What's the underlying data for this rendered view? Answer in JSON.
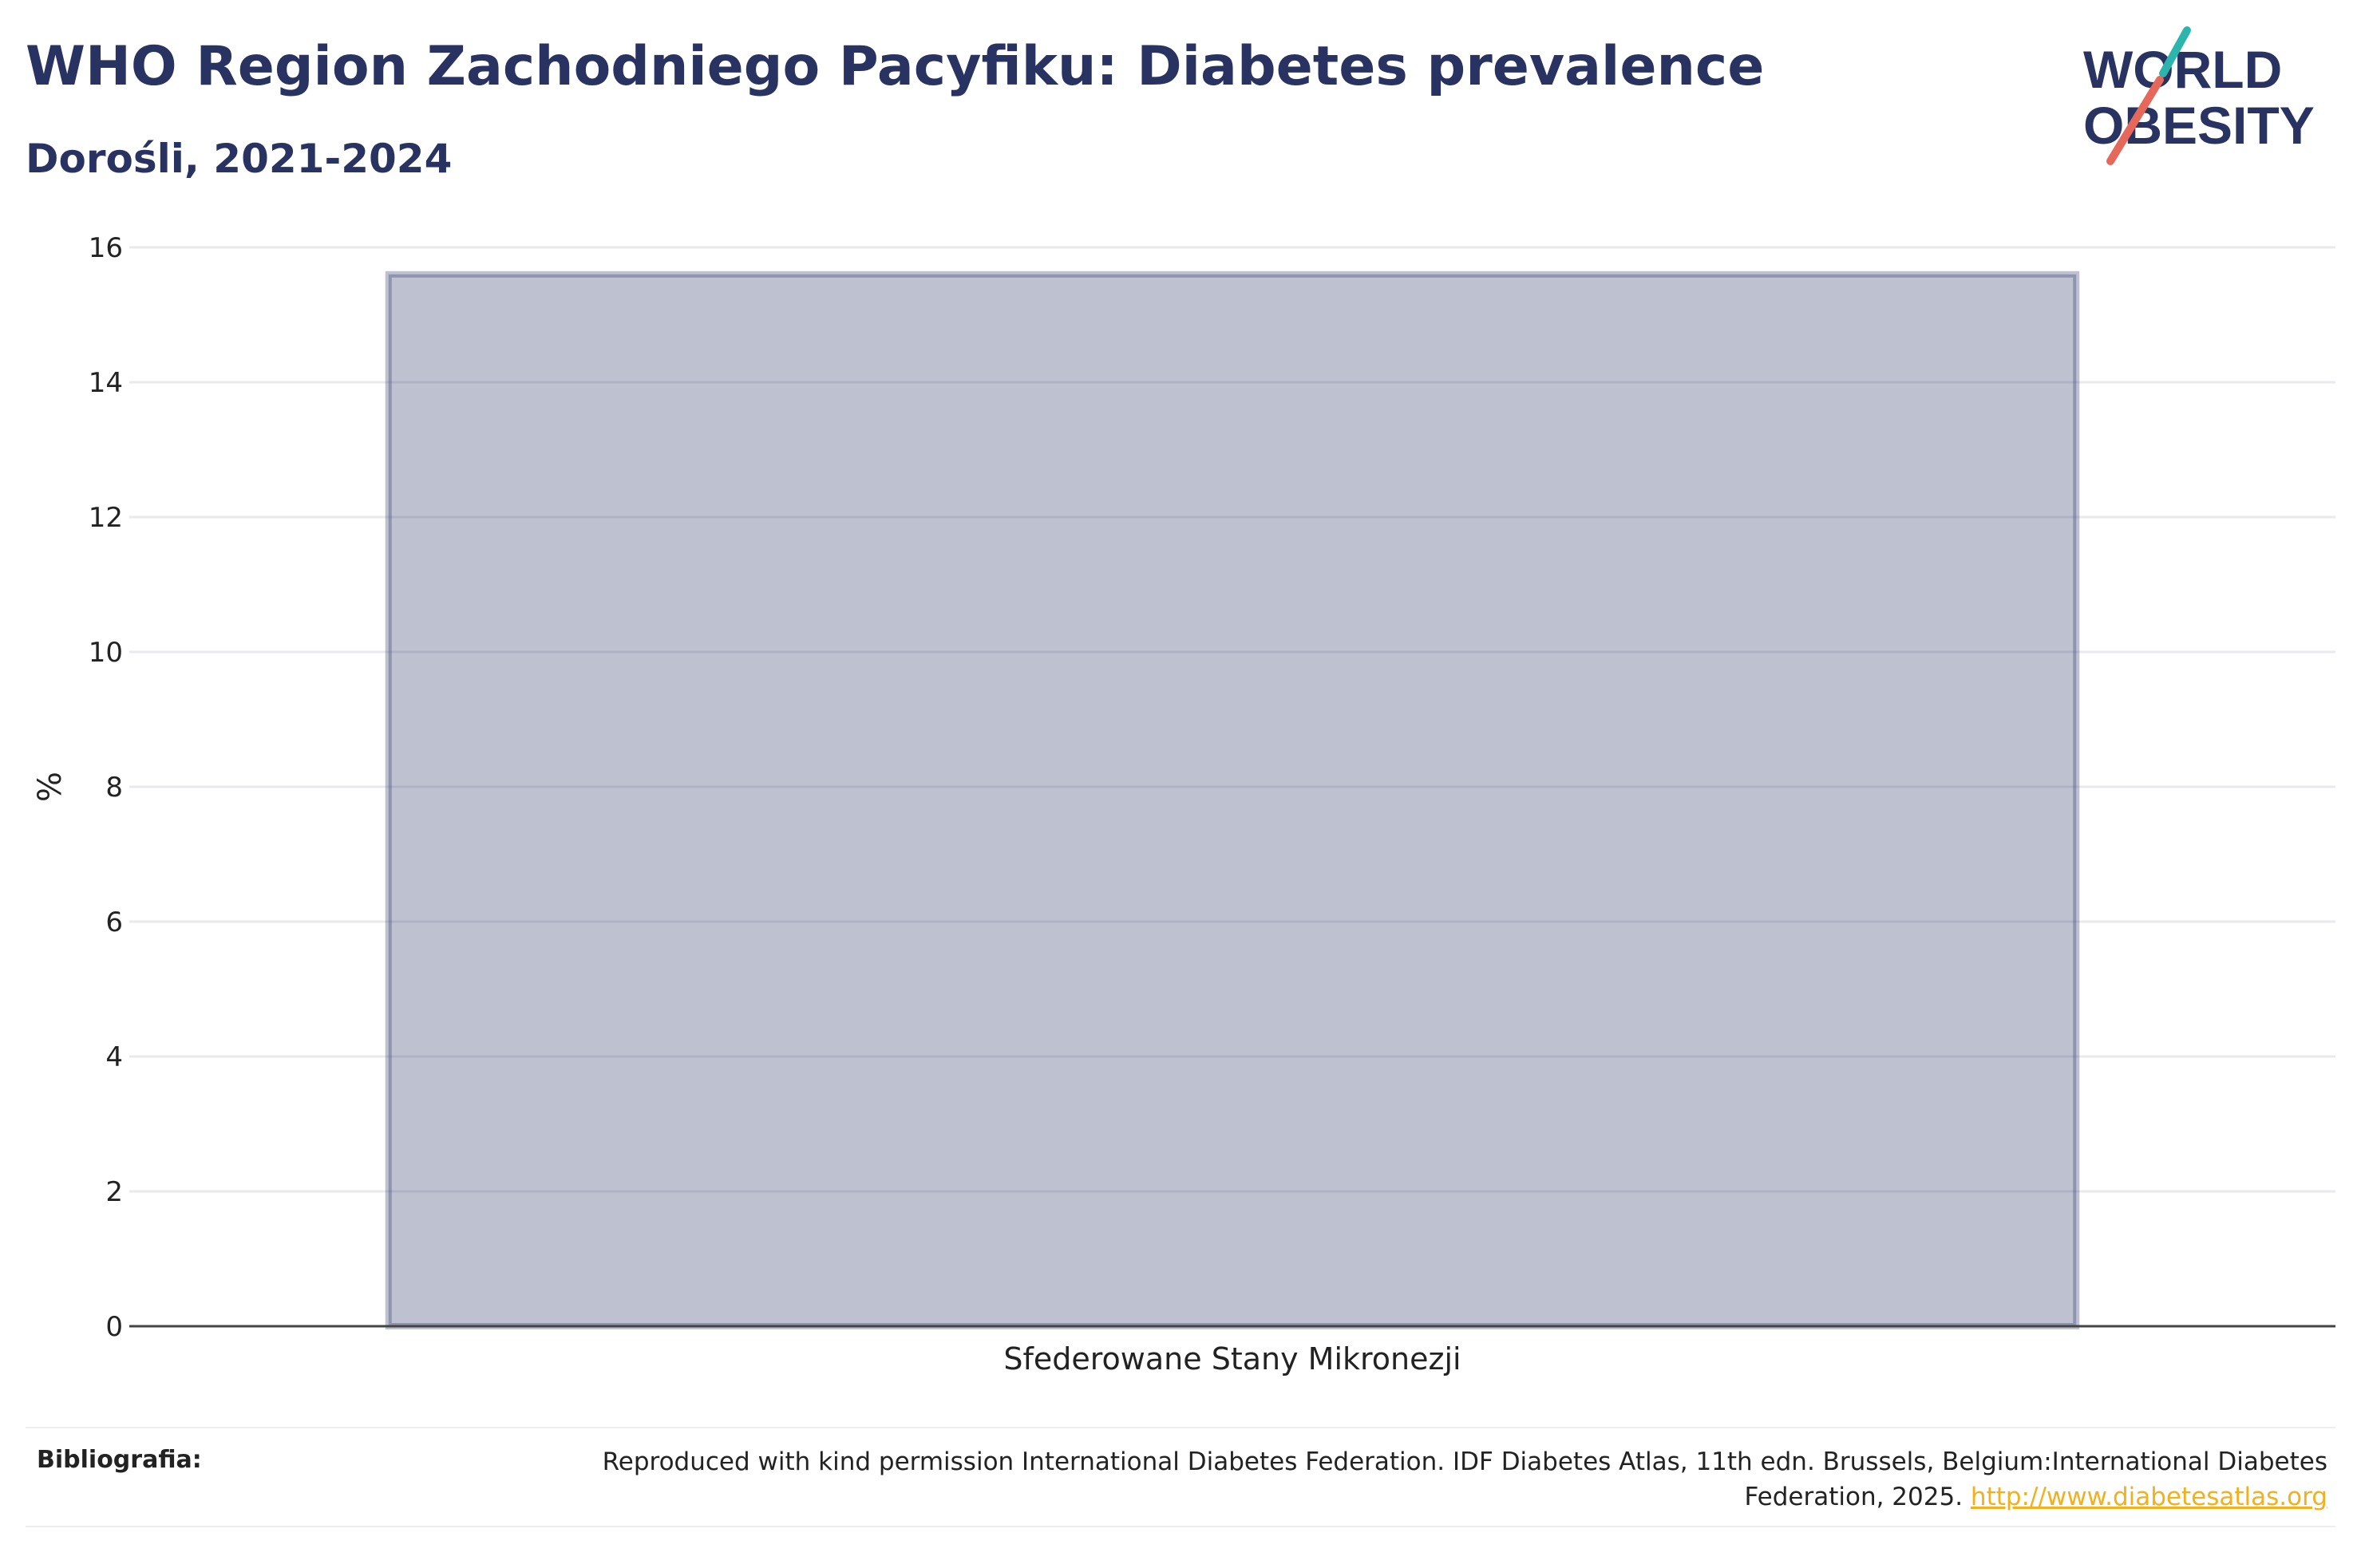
{
  "title": "WHO Region Zachodniego Pacyfiku: Diabetes prevalence",
  "subtitle": "Dorośli, 2021-2024",
  "logo": {
    "line1": "WORLD",
    "line2": "OBESITY",
    "text_color": "#283362",
    "slash_top_color": "#2bb5ad",
    "slash_bottom_color": "#e5685b"
  },
  "colors": {
    "bar_fill": "#283362",
    "bar_opacity": 0.3,
    "grid": "#e9eaee",
    "axis": "#444444",
    "link": "#f2b01e"
  },
  "chart_data": {
    "type": "bar",
    "categories": [
      "Sfederowane Stany Mikronezji"
    ],
    "values": [
      15.6
    ],
    "xlabel": "",
    "ylabel": "%",
    "ylim": [
      0,
      16
    ],
    "yticks": [
      0,
      2,
      4,
      6,
      8,
      10,
      12,
      14,
      16
    ],
    "grid": true
  },
  "footer": {
    "label": "Bibliografia:",
    "text": "Reproduced with kind permission International Diabetes Federation. IDF Diabetes Atlas, 11th edn. Brussels, Belgium:International Diabetes Federation, 2025.",
    "link_text": "http://www.diabetesatlas.org"
  }
}
